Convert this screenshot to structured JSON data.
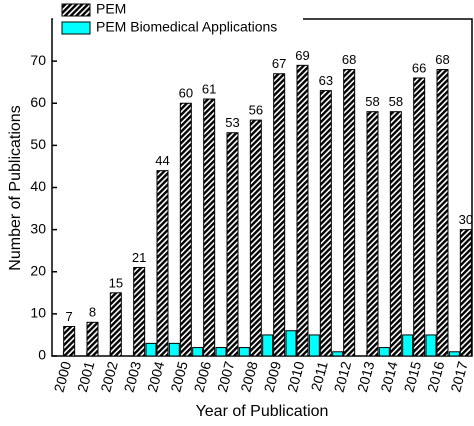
{
  "chart_data": {
    "type": "bar",
    "x_label": "Year of Publication",
    "y_label": "Number of Publications",
    "categories": [
      "2000",
      "2001",
      "2002",
      "2003",
      "2004",
      "2005",
      "2006",
      "2007",
      "2008",
      "2009",
      "2010",
      "2011",
      "2012",
      "2013",
      "2014",
      "2015",
      "2016",
      "2017"
    ],
    "series": [
      {
        "name": "PEM",
        "color": "#000000",
        "pattern": "hatch",
        "data_labels": true,
        "values": [
          7,
          8,
          15,
          21,
          44,
          60,
          61,
          53,
          56,
          67,
          69,
          63,
          68,
          58,
          58,
          66,
          68,
          30
        ]
      },
      {
        "name": "PEM Biomedical Applications",
        "color": "#00ffff",
        "values": [
          0,
          0,
          0,
          0,
          3,
          3,
          2,
          2,
          2,
          5,
          6,
          5,
          1,
          0,
          2,
          5,
          5,
          1
        ]
      }
    ],
    "ylim": [
      0,
      80
    ],
    "yticks": [
      0,
      10,
      20,
      30,
      40,
      50,
      60,
      70
    ],
    "grid": false,
    "legend": "top-left"
  }
}
